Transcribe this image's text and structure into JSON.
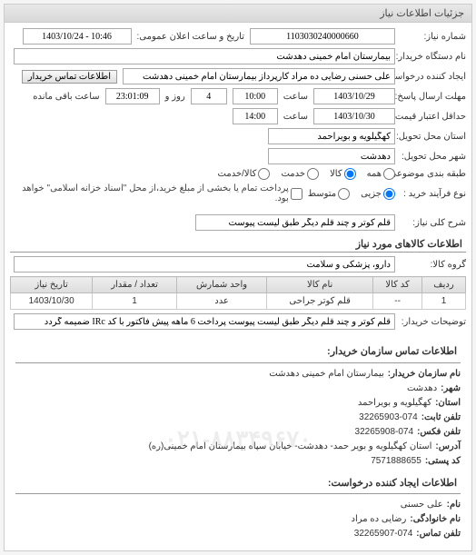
{
  "panel_title": "جزئیات اطلاعات نیاز",
  "fields": {
    "number_lbl": "شماره نیاز:",
    "number_val": "1103030240000660",
    "announce_lbl": "تاریخ و ساعت اعلان عمومی:",
    "announce_val": "10:46 - 1403/10/24",
    "buyer_dev_lbl": "نام دستگاه خریدار:",
    "buyer_dev_val": "بیمارستان امام خمینی دهدشت",
    "creator_lbl": "ایجاد کننده درخواست:",
    "creator_val": "علی حسنی رضایی ده مراد کارپرداز بیمارستان امام خمینی دهدشت",
    "contact_btn": "اطلاعات تماس خریدار",
    "deadline_lbl": "مهلت ارسال پاسخ: تا تاریخ:",
    "deadline_date": "1403/10/29",
    "deadline_time_lbl": "ساعت",
    "deadline_time": "10:00",
    "days_lbl": "روز و",
    "days_val": "4",
    "remain_time": "23:01:09",
    "remain_lbl": "ساعت باقی مانده",
    "minvalid_lbl": "حداقل اعتبار قیمت: تا تاریخ:",
    "minvalid_date": "1403/10/30",
    "minvalid_time": "14:00",
    "deliver_prov_lbl": "استان محل تحویل:",
    "deliver_prov_val": "کهگیلویه و بویراحمد",
    "deliver_city_lbl": "شهر محل تحویل:",
    "deliver_city_val": "دهدشت",
    "class_lbl": "طبقه بندی موضوعی:",
    "radio_all": "همه",
    "radio_goods": "کالا",
    "radio_service": "خدمت",
    "radio_goodserv": "کالا/خدمت",
    "buytype_lbl": "نوع فرآیند خرید :",
    "radio_small": "جزیی",
    "radio_medium": "متوسط",
    "buynote": "پرداخت تمام یا بخشی از مبلغ خرید،از محل \"اسناد خزانه اسلامی\" خواهد بود.",
    "desc_lbl": "شرح کلی نیاز:",
    "desc_val": "قلم کوتر و چند قلم دیگر طبق لیست پیوست",
    "goods_title": "اطلاعات کالاهای مورد نیاز",
    "goodsgrp_lbl": "گروه کالا:",
    "goodsgrp_val": "دارو، پزشکی و سلامت"
  },
  "table": {
    "headers": [
      "ردیف",
      "کد کالا",
      "نام کالا",
      "واحد شمارش",
      "تعداد / مقدار",
      "تاریخ نیاز"
    ],
    "row": [
      "1",
      "--",
      "قلم کوتر جراحی",
      "عدد",
      "1",
      "1403/10/30"
    ]
  },
  "explain_lbl": "توضیحات خریدار:",
  "explain_val": "قلم کوتر و چند قلم دیگر طبق لیست پیوست پرداخت 6 ماهه پیش فاکتور با کد IRc ضمیمه گردد",
  "contact_title": "اطلاعات تماس سازمان خریدار:",
  "org": {
    "name_lbl": "نام سازمان خریدار:",
    "name_val": "بیمارستان امام خمینی دهدشت",
    "city_lbl": "شهر:",
    "city_val": "دهدشت",
    "prov_lbl": "استان:",
    "prov_val": "کهگیلویه و بویراحمد",
    "tel_lbl": "تلفن ثابت:",
    "tel_val": "32265903-074",
    "fax_lbl": "تلفن فکس:",
    "fax_val": "32265908-074",
    "addr_lbl": "آدرس:",
    "addr_val": "استان کهگیلویه و بویر حمد- دهدشت- خیابان سپاه بیمارستان امام خمینی(ره)",
    "post_lbl": "کد پستی:",
    "post_val": "7571888655"
  },
  "req_creator_title": "اطلاعات ایجاد کننده درخواست:",
  "req": {
    "name_lbl": "نام:",
    "name_val": "علی حسنی",
    "fam_lbl": "نام خانوادگی:",
    "fam_val": "رضایی ده مراد",
    "tel_lbl": "تلفن تماس:",
    "tel_val": "32265907-074"
  },
  "watermark": "۰۲۱-۸۸۳۴۹۶۷۰"
}
